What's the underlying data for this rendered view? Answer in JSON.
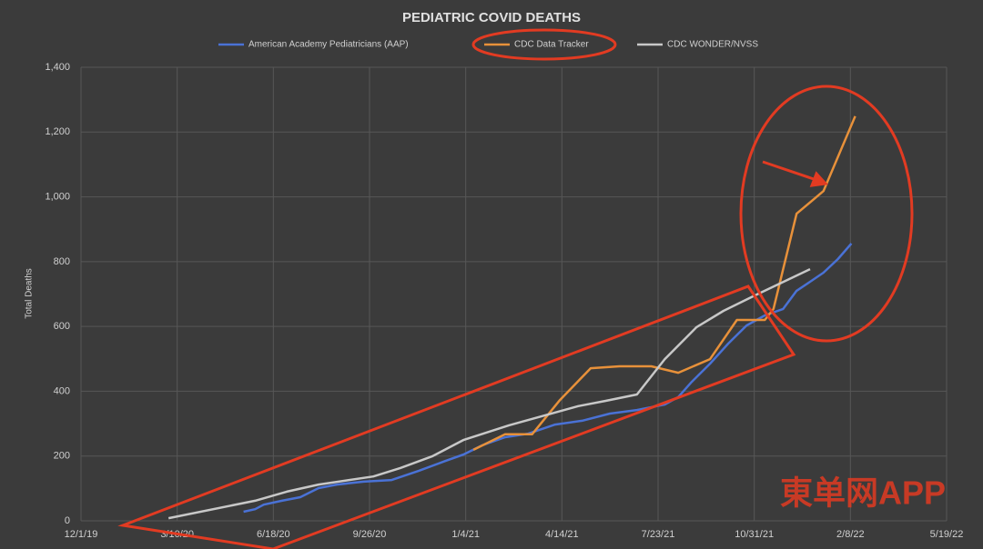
{
  "chart_data": {
    "type": "line",
    "title": "PEDIATRIC COVID DEATHS",
    "y_label": "Total Deaths",
    "watermark": "東单网APP",
    "xlim": [
      "2019-12-01",
      "2022-05-19"
    ],
    "xticks": [
      {
        "value": "2019-12-01",
        "label": "12/1/19"
      },
      {
        "value": "2020-03-10",
        "label": "3/10/20"
      },
      {
        "value": "2020-06-18",
        "label": "6/18/20"
      },
      {
        "value": "2020-09-26",
        "label": "9/26/20"
      },
      {
        "value": "2021-01-04",
        "label": "1/4/21"
      },
      {
        "value": "2021-04-14",
        "label": "4/14/21"
      },
      {
        "value": "2021-07-23",
        "label": "7/23/21"
      },
      {
        "value": "2021-10-31",
        "label": "10/31/21"
      },
      {
        "value": "2022-02-08",
        "label": "2/8/22"
      },
      {
        "value": "2022-05-19",
        "label": "5/19/22"
      }
    ],
    "ylim": [
      0,
      1400
    ],
    "yticks": [
      0,
      200,
      400,
      600,
      800,
      {
        "value": 1000,
        "label": "1,000"
      },
      {
        "value": 1200,
        "label": "1,200"
      },
      {
        "value": 1400,
        "label": "1,400"
      }
    ],
    "grid": true,
    "legend": "top",
    "series": [
      {
        "name": "American Academy Pediatricians (AAP)",
        "color": "#4a72d6",
        "x": [
          "2020-05-18",
          "2020-05-30",
          "2020-06-08",
          "2020-06-27",
          "2020-07-16",
          "2020-08-04",
          "2020-08-23",
          "2020-09-20",
          "2020-10-19",
          "2020-11-16",
          "2020-12-14",
          "2021-01-02",
          "2021-01-21",
          "2021-02-14",
          "2021-03-10",
          "2021-04-07",
          "2021-05-05",
          "2021-06-03",
          "2021-07-01",
          "2021-07-30",
          "2021-08-13",
          "2021-08-27",
          "2021-09-15",
          "2021-10-04",
          "2021-10-23",
          "2021-11-11",
          "2021-11-30",
          "2021-12-14",
          "2021-12-28",
          "2022-01-11",
          "2022-01-26",
          "2022-02-09"
        ],
        "values": [
          28,
          36,
          50,
          62,
          73,
          101,
          112,
          121,
          126,
          154,
          185,
          205,
          233,
          258,
          269,
          297,
          309,
          331,
          342,
          359,
          382,
          429,
          485,
          547,
          603,
          634,
          654,
          710,
          738,
          766,
          808,
          856
        ]
      },
      {
        "name": "CDC Data Tracker",
        "color": "#e8913a",
        "x": [
          "2021-01-12",
          "2021-02-14",
          "2021-03-14",
          "2021-04-12",
          "2021-05-14",
          "2021-06-13",
          "2021-07-16",
          "2021-08-13",
          "2021-09-15",
          "2021-10-13",
          "2021-11-11",
          "2021-11-20",
          "2021-12-14",
          "2022-01-11",
          "2022-02-13"
        ],
        "values": [
          219,
          267,
          267,
          373,
          471,
          477,
          477,
          457,
          499,
          620,
          620,
          654,
          948,
          1018,
          1249
        ]
      },
      {
        "name": "CDC WONDER/NVSS",
        "color": "#c8c8c8",
        "x": [
          "2020-03-01",
          "2020-05-30",
          "2020-07-02",
          "2020-08-04",
          "2020-09-30",
          "2020-10-28",
          "2020-11-30",
          "2021-01-02",
          "2021-02-18",
          "2021-05-01",
          "2021-05-29",
          "2021-07-01",
          "2021-07-30",
          "2021-09-01",
          "2021-09-29",
          "2021-11-01",
          "2021-12-28"
        ],
        "values": [
          8,
          62,
          90,
          112,
          137,
          163,
          199,
          250,
          295,
          354,
          370,
          390,
          499,
          598,
          648,
          696,
          777
        ]
      }
    ]
  }
}
